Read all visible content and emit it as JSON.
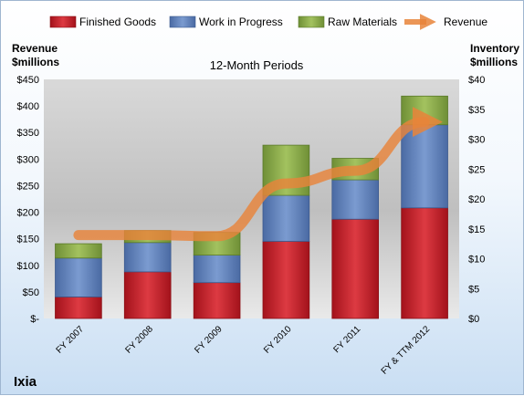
{
  "chart_data": {
    "type": "bar",
    "stacked": true,
    "subtitle": "12-Month Periods",
    "company": "Ixia",
    "categories": [
      "FY 2007",
      "FY 2008",
      "FY 2009",
      "FY 2010",
      "FY 2011",
      "FY & TTM 2012"
    ],
    "series": [
      {
        "name": "Finished Goods",
        "axis": "right",
        "color": "#c0202a",
        "values": [
          3.6,
          7.8,
          6.0,
          12.9,
          16.6,
          18.5
        ]
      },
      {
        "name": "Work in Progress",
        "axis": "right",
        "color": "#5a7eb8",
        "values": [
          6.5,
          4.9,
          4.6,
          7.7,
          6.6,
          13.9
        ]
      },
      {
        "name": "Raw Materials",
        "axis": "right",
        "color": "#87a84a",
        "values": [
          2.4,
          2.0,
          3.8,
          8.4,
          3.6,
          4.8
        ]
      }
    ],
    "line_series": {
      "name": "Revenue",
      "axis": "left",
      "color": "#e8843a",
      "values": [
        157,
        157,
        155,
        254,
        278,
        370
      ]
    },
    "left_axis": {
      "label_line1": "Revenue",
      "label_line2": "$millions",
      "ylim": [
        0,
        450
      ],
      "ticks": [
        0,
        50,
        100,
        150,
        200,
        250,
        300,
        350,
        400,
        450
      ],
      "tick_labels": [
        "$-",
        "$50",
        "$100",
        "$150",
        "$200",
        "$250",
        "$300",
        "$350",
        "$400",
        "$450"
      ]
    },
    "right_axis": {
      "label_line1": "Inventory",
      "label_line2": "$millions",
      "ylim": [
        0,
        40
      ],
      "ticks": [
        0,
        5,
        10,
        15,
        20,
        25,
        30,
        35,
        40
      ],
      "tick_labels": [
        "$0",
        "$5",
        "$10",
        "$15",
        "$20",
        "$25",
        "$30",
        "$35",
        "$40"
      ]
    },
    "legend_position": "top",
    "grid": false
  }
}
